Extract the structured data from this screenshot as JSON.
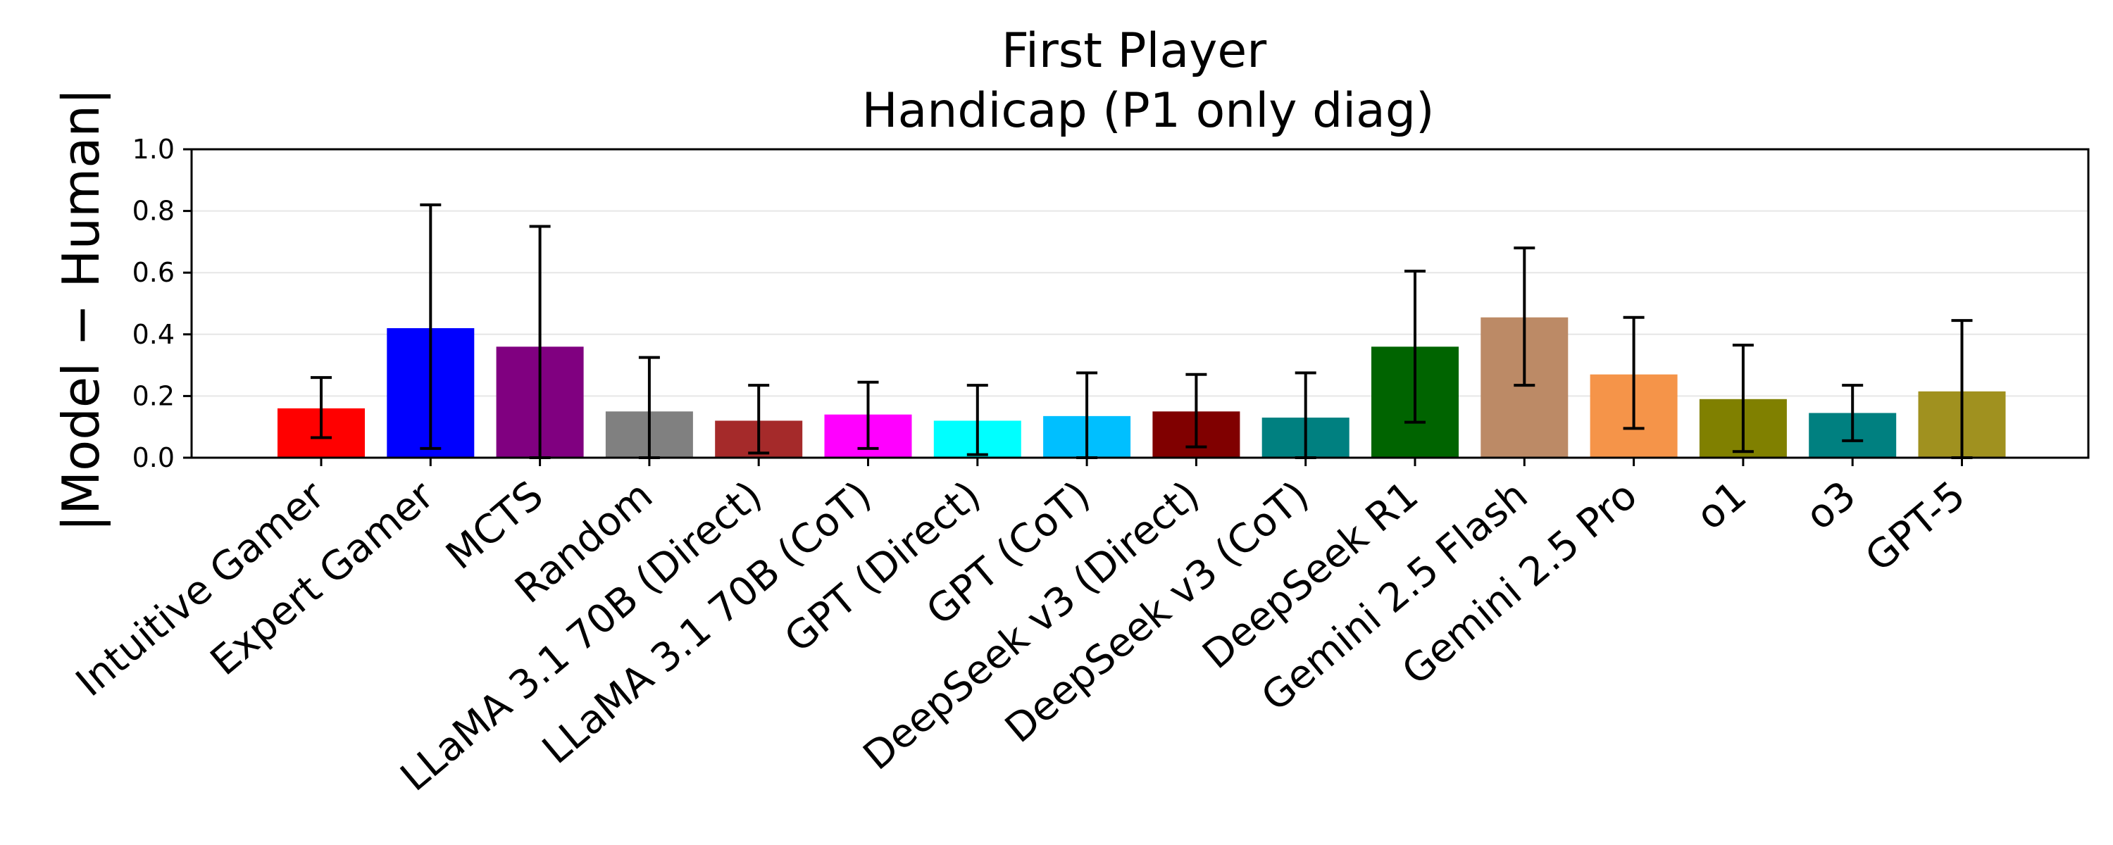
{
  "chart_data": {
    "type": "bar",
    "title": "First Player\nHandicap (P1 only diag)",
    "title_lines": [
      "First Player",
      "Handicap (P1 only diag)"
    ],
    "xlabel": "",
    "ylabel": "|Model − Human|",
    "ylim": [
      0,
      1.0
    ],
    "yticks": [
      0.0,
      0.2,
      0.4,
      0.6,
      0.8,
      1.0
    ],
    "ytick_labels": [
      "0.0",
      "0.2",
      "0.4",
      "0.6",
      "0.8",
      "1.0"
    ],
    "grid": "horizontal",
    "categories": [
      "Intuitive Gamer",
      "Expert Gamer",
      "MCTS",
      "Random",
      "LLaMA 3.1 70B (Direct)",
      "LLaMA 3.1 70B (CoT)",
      "GPT (Direct)",
      "GPT (CoT)",
      "DeepSeek v3 (Direct)",
      "DeepSeek v3 (CoT)",
      "DeepSeek R1",
      "Gemini 2.5 Flash",
      "Gemini 2.5 Pro",
      "o1",
      "o3",
      "GPT-5"
    ],
    "values": [
      0.16,
      0.42,
      0.36,
      0.15,
      0.12,
      0.14,
      0.12,
      0.135,
      0.15,
      0.13,
      0.36,
      0.455,
      0.27,
      0.19,
      0.145,
      0.215
    ],
    "err_low": [
      0.065,
      0.03,
      0.0,
      0.0,
      0.015,
      0.03,
      0.01,
      0.0,
      0.035,
      0.0,
      0.115,
      0.235,
      0.095,
      0.02,
      0.055,
      0.0
    ],
    "err_high": [
      0.26,
      0.82,
      0.75,
      0.325,
      0.235,
      0.245,
      0.235,
      0.275,
      0.27,
      0.275,
      0.605,
      0.68,
      0.455,
      0.365,
      0.235,
      0.445
    ],
    "colors": [
      "#ff0000",
      "#0000ff",
      "#800080",
      "#808080",
      "#a52a2a",
      "#ff00ff",
      "#00ffff",
      "#00bfff",
      "#800000",
      "#008080",
      "#006400",
      "#bc8a66",
      "#f59449",
      "#808000",
      "#008080",
      "#a0911f"
    ]
  }
}
